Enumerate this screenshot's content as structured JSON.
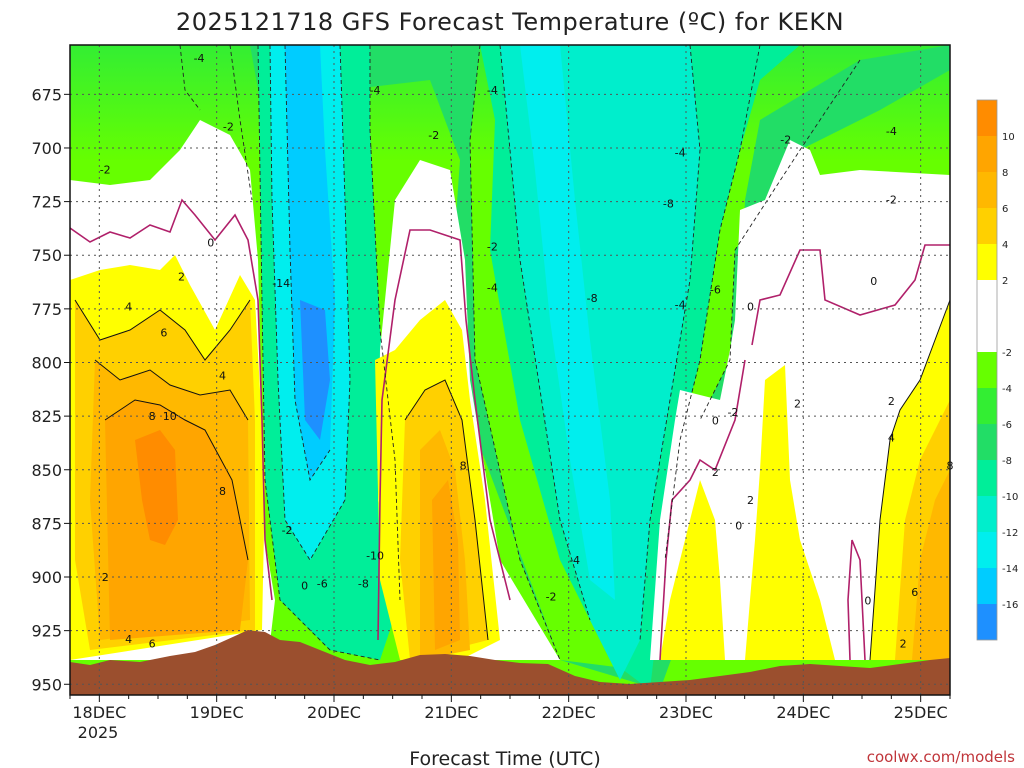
{
  "chart_data": {
    "type": "heatmap",
    "title": "2025121718 GFS Forecast Temperature (ºC) for KEKN",
    "xlabel": "Forecast Time (UTC)",
    "ylabel": "",
    "x_tick_labels": [
      "18DEC",
      "19DEC",
      "20DEC",
      "21DEC",
      "22DEC",
      "23DEC",
      "24DEC",
      "25DEC"
    ],
    "x_year_label": "2025",
    "x_range_days": [
      17.75,
      25.25
    ],
    "y_tick_labels": [
      "675",
      "700",
      "725",
      "750",
      "775",
      "800",
      "825",
      "850",
      "875",
      "900",
      "925",
      "950"
    ],
    "y_range_hpa": [
      652,
      955
    ],
    "y_inverted": true,
    "colorbar": {
      "tick_labels": [
        "10",
        "8",
        "6",
        "4",
        "2",
        "-2",
        "-4",
        "-6",
        "-8",
        "-10",
        "-12",
        "-14",
        "-16"
      ],
      "range": [
        -18,
        12
      ],
      "bands": [
        {
          "from": 10,
          "to": 12,
          "color": "#ff8c00"
        },
        {
          "from": 8,
          "to": 10,
          "color": "#ffa500"
        },
        {
          "from": 6,
          "to": 8,
          "color": "#ffb800"
        },
        {
          "from": 4,
          "to": 6,
          "color": "#ffd000"
        },
        {
          "from": 2,
          "to": 4,
          "color": "#ffff00"
        },
        {
          "from": -2,
          "to": 2,
          "color": "#ffffff"
        },
        {
          "from": -4,
          "to": -2,
          "color": "#66ff00"
        },
        {
          "from": -6,
          "to": -4,
          "color": "#33ee33"
        },
        {
          "from": -8,
          "to": -6,
          "color": "#22dd66"
        },
        {
          "from": -10,
          "to": -8,
          "color": "#00ee99"
        },
        {
          "from": -12,
          "to": -10,
          "color": "#00eecc"
        },
        {
          "from": -14,
          "to": -12,
          "color": "#00eeee"
        },
        {
          "from": -16,
          "to": -14,
          "color": "#00ccff"
        },
        {
          "from": -18,
          "to": -16,
          "color": "#1e90ff"
        }
      ]
    },
    "terrain_color": "#9b4f2e",
    "zero_contour_color": "#b0206a",
    "contour_labels": [
      {
        "text": "-4",
        "day": 18.85,
        "p": 658
      },
      {
        "text": "-4",
        "day": 20.35,
        "p": 673
      },
      {
        "text": "-4",
        "day": 21.35,
        "p": 673
      },
      {
        "text": "-2",
        "day": 19.1,
        "p": 690
      },
      {
        "text": "-2",
        "day": 20.85,
        "p": 694
      },
      {
        "text": "-2",
        "day": 18.05,
        "p": 710
      },
      {
        "text": "-2",
        "day": 23.85,
        "p": 696
      },
      {
        "text": "-4",
        "day": 22.95,
        "p": 702
      },
      {
        "text": "-4",
        "day": 24.75,
        "p": 692
      },
      {
        "text": "-8",
        "day": 22.85,
        "p": 726
      },
      {
        "text": "-2",
        "day": 24.75,
        "p": 724
      },
      {
        "text": "0",
        "day": 18.95,
        "p": 744
      },
      {
        "text": "2",
        "day": 18.7,
        "p": 760
      },
      {
        "text": "-2",
        "day": 21.35,
        "p": 746
      },
      {
        "text": "-14",
        "day": 19.55,
        "p": 763
      },
      {
        "text": "-4",
        "day": 21.35,
        "p": 765
      },
      {
        "text": "-8",
        "day": 22.2,
        "p": 770
      },
      {
        "text": "-4",
        "day": 22.95,
        "p": 773
      },
      {
        "text": "-6",
        "day": 23.25,
        "p": 766
      },
      {
        "text": "0",
        "day": 23.55,
        "p": 774
      },
      {
        "text": "0",
        "day": 24.6,
        "p": 762
      },
      {
        "text": "4",
        "day": 18.25,
        "p": 774
      },
      {
        "text": "6",
        "day": 18.55,
        "p": 786
      },
      {
        "text": "4",
        "day": 19.05,
        "p": 806
      },
      {
        "text": "8",
        "day": 18.45,
        "p": 825
      },
      {
        "text": "10",
        "day": 18.6,
        "p": 825
      },
      {
        "text": "-2",
        "day": 23.4,
        "p": 823
      },
      {
        "text": "2",
        "day": 23.95,
        "p": 819
      },
      {
        "text": "2",
        "day": 24.75,
        "p": 818
      },
      {
        "text": "0",
        "day": 23.25,
        "p": 827
      },
      {
        "text": "4",
        "day": 24.75,
        "p": 835
      },
      {
        "text": "8",
        "day": 21.1,
        "p": 848
      },
      {
        "text": "2",
        "day": 23.25,
        "p": 851
      },
      {
        "text": "8",
        "day": 25.25,
        "p": 848
      },
      {
        "text": "8",
        "day": 19.05,
        "p": 860
      },
      {
        "text": "2",
        "day": 23.55,
        "p": 864
      },
      {
        "text": "-2",
        "day": 19.6,
        "p": 878
      },
      {
        "text": "0",
        "day": 23.45,
        "p": 876
      },
      {
        "text": "-10",
        "day": 20.35,
        "p": 890
      },
      {
        "text": "-4",
        "day": 22.05,
        "p": 892
      },
      {
        "text": "2",
        "day": 18.05,
        "p": 900
      },
      {
        "text": "-8",
        "day": 20.25,
        "p": 903
      },
      {
        "text": "-6",
        "day": 19.9,
        "p": 903
      },
      {
        "text": "0",
        "day": 19.75,
        "p": 904
      },
      {
        "text": "-2",
        "day": 21.85,
        "p": 909
      },
      {
        "text": "0",
        "day": 24.55,
        "p": 911
      },
      {
        "text": "6",
        "day": 24.95,
        "p": 907
      },
      {
        "text": "4",
        "day": 18.25,
        "p": 929
      },
      {
        "text": "6",
        "day": 18.45,
        "p": 931
      },
      {
        "text": "2",
        "day": 24.85,
        "p": 931
      }
    ]
  },
  "credit": "coolwx.com/models"
}
